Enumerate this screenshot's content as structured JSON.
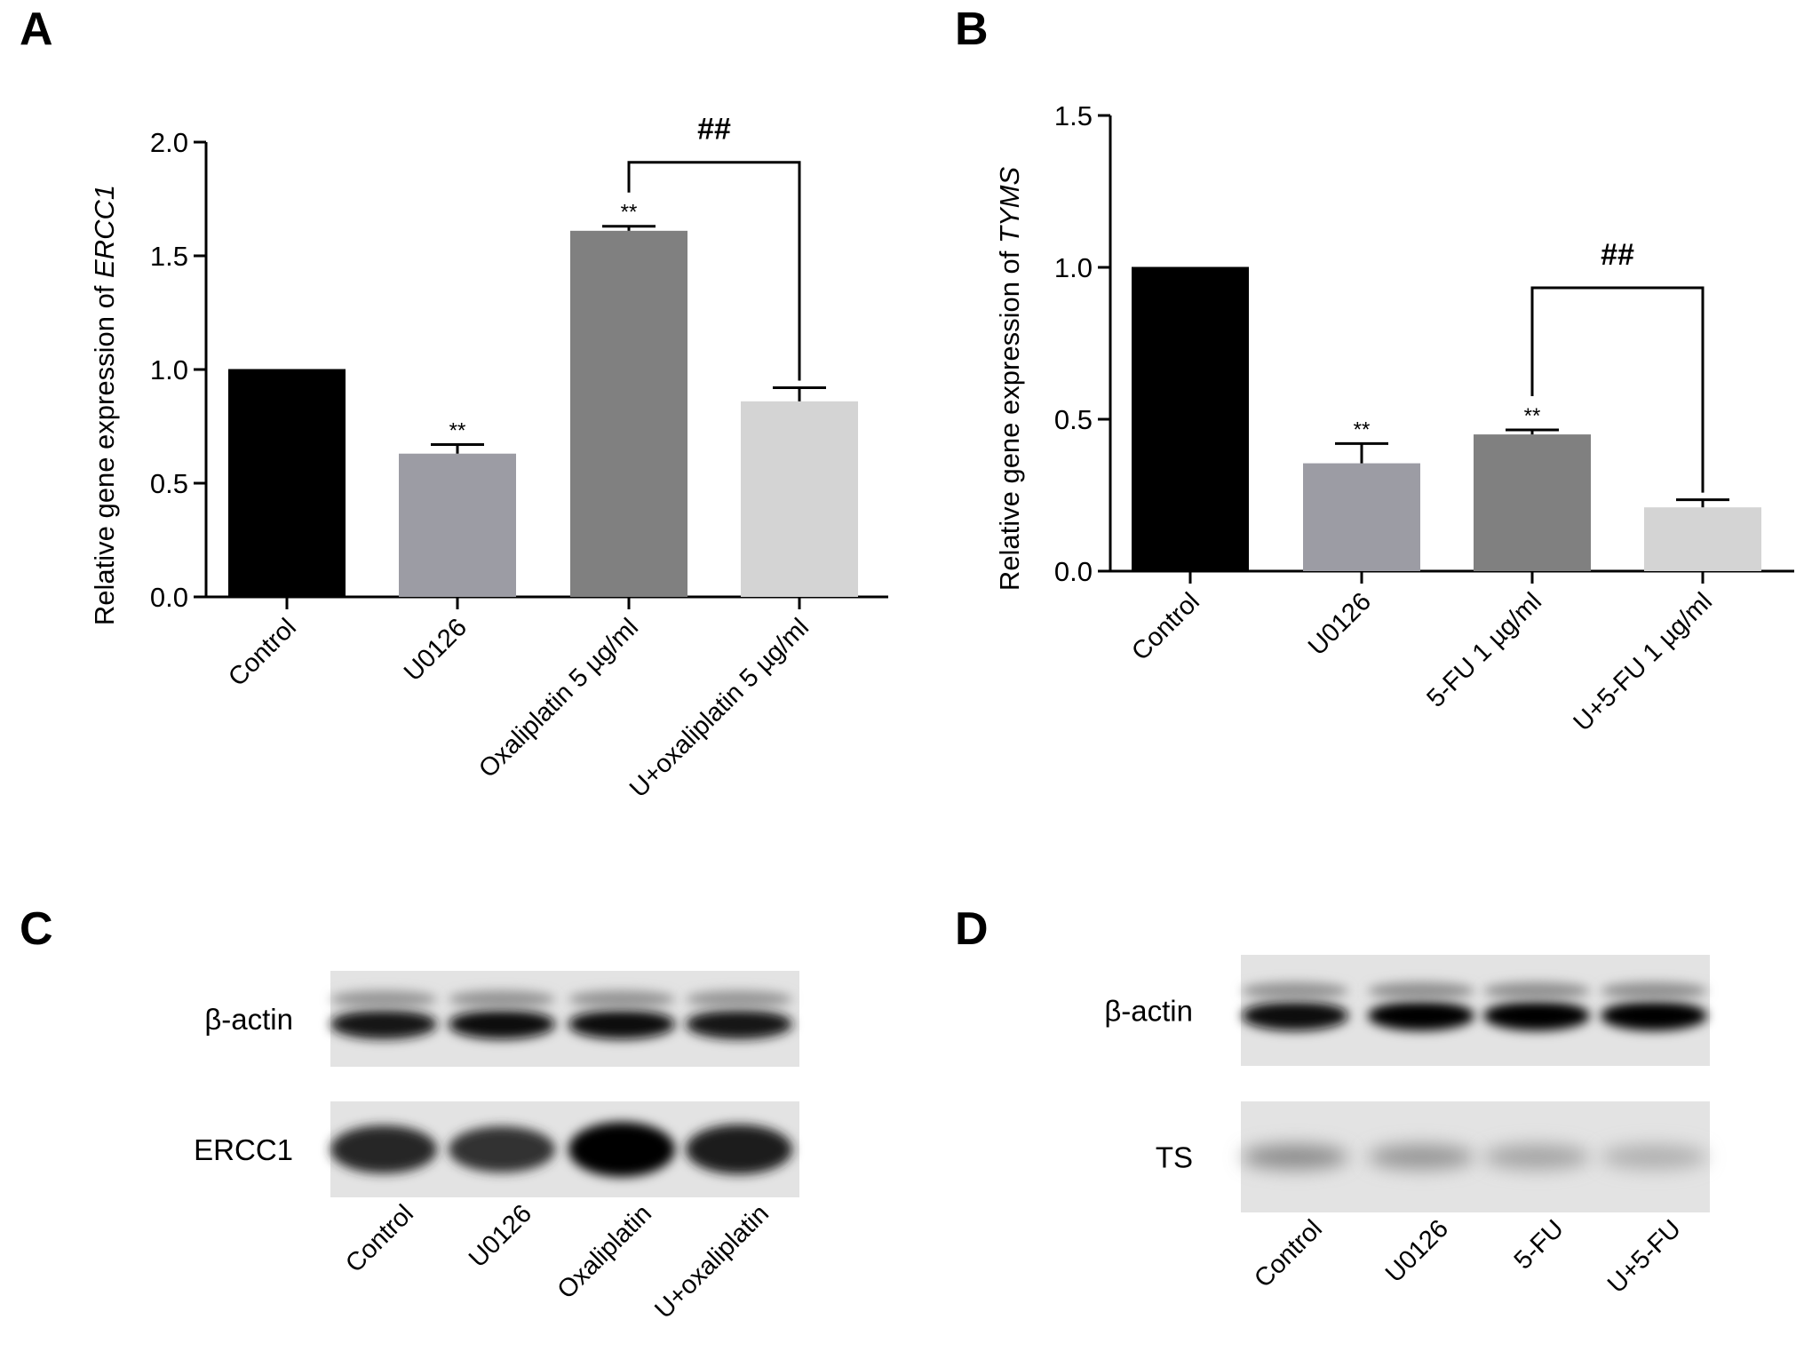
{
  "panels": {
    "A": "A",
    "B": "B",
    "C": "C",
    "D": "D"
  },
  "chart_data": [
    {
      "type": "bar",
      "panel": "A",
      "ylabel_prefix": "Relative gene expression of ",
      "ylabel_gene": "ERCC1",
      "categories": [
        "Control",
        "U0126",
        "Oxaliplatin 5 µg/ml",
        "U+oxaliplatin 5 µg/ml"
      ],
      "values": [
        1.0,
        0.63,
        1.61,
        0.86
      ],
      "errors": [
        0.0,
        0.04,
        0.02,
        0.06
      ],
      "colors": [
        "#000000",
        "#9c9ca4",
        "#808080",
        "#d4d4d4"
      ],
      "ylim": [
        0,
        2.0
      ],
      "yticks": [
        "0.0",
        "0.5",
        "1.0",
        "1.5",
        "2.0"
      ],
      "significance": [
        "",
        "**",
        "**",
        ""
      ],
      "comparison": {
        "from": 2,
        "to": 3,
        "label": "##"
      }
    },
    {
      "type": "bar",
      "panel": "B",
      "ylabel_prefix": "Relative gene expression of ",
      "ylabel_gene": "TYMS",
      "categories": [
        "Control",
        "U0126",
        "5-FU 1 µg/ml",
        "U+5-FU 1 µg/ml"
      ],
      "values": [
        1.0,
        0.355,
        0.45,
        0.21
      ],
      "errors": [
        0.0,
        0.065,
        0.015,
        0.025
      ],
      "colors": [
        "#000000",
        "#9c9ca4",
        "#808080",
        "#d4d4d4"
      ],
      "ylim": [
        0,
        1.5
      ],
      "yticks": [
        "0.0",
        "0.5",
        "1.0",
        "1.5"
      ],
      "significance": [
        "",
        "**",
        "**",
        ""
      ],
      "comparison": {
        "from": 2,
        "to": 3,
        "label": "##"
      }
    }
  ],
  "blots": [
    {
      "panel": "C",
      "rows": [
        "β-actin",
        "ERCC1"
      ],
      "lanes": [
        "Control",
        "U0126",
        "Oxaliplatin",
        "U+oxaliplatin"
      ],
      "intensity": [
        [
          0.9,
          0.95,
          0.95,
          0.9
        ],
        [
          0.8,
          0.75,
          1.0,
          0.85
        ]
      ]
    },
    {
      "panel": "D",
      "rows": [
        "β-actin",
        "TS"
      ],
      "lanes": [
        "Control",
        "U0126",
        "5-FU",
        "U+5-FU"
      ],
      "intensity": [
        [
          0.95,
          1.0,
          1.0,
          1.0
        ],
        [
          0.3,
          0.25,
          0.18,
          0.12
        ]
      ]
    }
  ]
}
